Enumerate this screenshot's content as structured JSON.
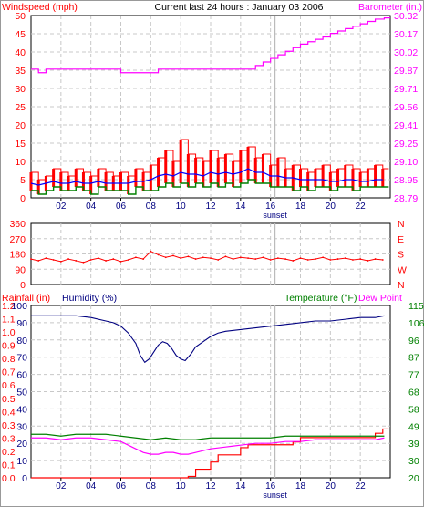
{
  "colors": {
    "windspeed": "#ff0000",
    "gust": "#ff0000",
    "wind_avg": "#0000ff",
    "wind_low": "#008000",
    "barometer": "#ff00ff",
    "direction": "#ff0000",
    "rainfall": "#ff0000",
    "humidity": "#000080",
    "temperature": "#008000",
    "dewpoint": "#ff00ff",
    "grid": "#c8c8c8",
    "frame": "#000000"
  },
  "header": {
    "title": "Current last 24 hours : January 03 2006",
    "left_label": "Windspeed (mph)",
    "right_label": "Barometer (in.)"
  },
  "middle": {
    "direction_labels": [
      "N",
      "W",
      "S",
      "E",
      "N"
    ]
  },
  "bottom": {
    "rain_label": "Rainfall (in)",
    "humidity_label": "Humidity (%)",
    "temp_label": "Temperature (°F)",
    "dew_label": "Dew Point"
  },
  "chart_data": [
    {
      "type": "line",
      "title": "Current last 24 hours : January 03 2006",
      "x_ticks": [
        "02",
        "04",
        "06",
        "08",
        "10",
        "12",
        "14",
        "16",
        "18",
        "20",
        "22"
      ],
      "x_annotation": "sunset",
      "ylabel_left": "Windspeed (mph)",
      "ylabel_right": "Barometer (in.)",
      "ylim_left": [
        0,
        50
      ],
      "yticks_left": [
        "0",
        "5",
        "10",
        "15",
        "20",
        "25",
        "30",
        "35",
        "40",
        "45",
        "50"
      ],
      "ylim_right": [
        28.79,
        30.32
      ],
      "yticks_right": [
        "28.79",
        "28.95",
        "29.10",
        "29.25",
        "29.41",
        "29.56",
        "29.71",
        "29.87",
        "30.02",
        "30.17",
        "30.32"
      ],
      "grid": true,
      "series": [
        {
          "x": [
            0,
            0.5,
            1,
            1.5,
            2,
            2.5,
            3,
            3.5,
            4,
            4.5,
            5,
            5.5,
            6,
            6.5,
            7,
            7.5,
            8,
            8.5,
            9,
            9.5,
            10,
            10.5,
            11,
            11.5,
            12,
            12.5,
            13,
            13.5,
            14,
            14.5,
            15,
            15.5,
            16,
            16.5,
            17,
            17.5,
            18,
            18.5,
            19,
            19.5,
            20,
            20.5,
            21,
            21.5,
            22,
            22.5,
            23,
            23.5
          ],
          "values": [
            7,
            5,
            6,
            8,
            7,
            6,
            8,
            7,
            6,
            8,
            7,
            6,
            7,
            6,
            8,
            7,
            9,
            11,
            13,
            10,
            16,
            12,
            11,
            10,
            13,
            11,
            12,
            10,
            13,
            14,
            11,
            12,
            9,
            11,
            8,
            9,
            8,
            7,
            8,
            9,
            7,
            8,
            9,
            8,
            7,
            8,
            9,
            8
          ]
        },
        {
          "x": [
            0,
            0.5,
            1,
            1.5,
            2,
            2.5,
            3,
            3.5,
            4,
            4.5,
            5,
            5.5,
            6,
            6.5,
            7,
            7.5,
            8,
            8.5,
            9,
            9.5,
            10,
            10.5,
            11,
            11.5,
            12,
            12.5,
            13,
            13.5,
            14,
            14.5,
            15,
            15.5,
            16,
            16.5,
            17,
            17.5,
            18,
            18.5,
            19,
            19.5,
            20,
            20.5,
            21,
            21.5,
            22,
            22.5,
            23,
            23.5
          ],
          "values": [
            4,
            3.5,
            4,
            4.5,
            4,
            4,
            4.5,
            4,
            4,
            4.5,
            4,
            4,
            4,
            4,
            4.5,
            4.5,
            5,
            6,
            6.5,
            6,
            7,
            6.5,
            6.5,
            6,
            7,
            6.5,
            7,
            6.5,
            7,
            8,
            7,
            7,
            6,
            6,
            5.5,
            5.5,
            5,
            5,
            5,
            5,
            4.5,
            4.5,
            5,
            5,
            4.5,
            4.5,
            5,
            5
          ]
        },
        {
          "x": [
            0,
            0.5,
            1,
            1.5,
            2,
            2.5,
            3,
            3.5,
            4,
            4.5,
            5,
            5.5,
            6,
            6.5,
            7,
            7.5,
            8,
            8.5,
            9,
            9.5,
            10,
            10.5,
            11,
            11.5,
            12,
            12.5,
            13,
            13.5,
            14,
            14.5,
            15,
            15.5,
            16,
            16.5,
            17,
            17.5,
            18,
            18.5,
            19,
            19.5,
            20,
            20.5,
            21,
            21.5,
            22,
            22.5,
            23,
            23.5
          ],
          "values": [
            2,
            1,
            2,
            3,
            2,
            2,
            3,
            2,
            1,
            3,
            2,
            2,
            2,
            1,
            3,
            2,
            2,
            3,
            4,
            3,
            4,
            3,
            4,
            3,
            4,
            3,
            4,
            3,
            4,
            5,
            4,
            4,
            3,
            3,
            3,
            2,
            3,
            2,
            3,
            3,
            2,
            3,
            3,
            2,
            3,
            3,
            3,
            3
          ]
        },
        {
          "x": [
            0,
            0.5,
            1,
            2,
            3,
            4,
            5,
            6,
            6.5,
            7,
            8,
            8.5,
            9,
            10,
            11,
            12,
            13,
            14,
            14.5,
            15,
            15.5,
            16,
            16.5,
            17,
            17.5,
            18,
            18.5,
            19,
            19.5,
            20,
            20.5,
            21,
            21.5,
            22,
            22.5,
            23,
            23.6
          ],
          "values": [
            29.87,
            29.84,
            29.87,
            29.87,
            29.87,
            29.87,
            29.87,
            29.84,
            29.84,
            29.84,
            29.84,
            29.87,
            29.87,
            29.87,
            29.87,
            29.87,
            29.87,
            29.87,
            29.87,
            29.9,
            29.93,
            29.96,
            29.99,
            30.02,
            30.05,
            30.08,
            30.1,
            30.12,
            30.14,
            30.17,
            30.19,
            30.21,
            30.23,
            30.25,
            30.27,
            30.29,
            30.3
          ]
        }
      ]
    },
    {
      "type": "line",
      "ylim_left": [
        0,
        360
      ],
      "yticks_left": [
        "0",
        "90",
        "180",
        "270",
        "360"
      ],
      "right_labels": [
        "N",
        "W",
        "S",
        "E",
        "N"
      ],
      "grid": true,
      "series": [
        {
          "x": [
            0,
            0.5,
            1,
            1.5,
            2,
            2.5,
            3,
            3.5,
            4,
            4.5,
            5,
            5.5,
            6,
            6.5,
            7,
            7.5,
            8,
            8.5,
            9,
            9.5,
            10,
            10.5,
            11,
            11.5,
            12,
            12.5,
            13,
            13.5,
            14,
            14.5,
            15,
            15.5,
            16,
            16.5,
            17,
            17.5,
            18,
            18.5,
            19,
            19.5,
            20,
            20.5,
            21,
            21.5,
            22,
            22.5,
            23,
            23.5
          ],
          "values": [
            150,
            140,
            155,
            145,
            135,
            150,
            140,
            130,
            145,
            155,
            140,
            150,
            135,
            145,
            160,
            150,
            195,
            175,
            160,
            170,
            155,
            165,
            150,
            160,
            155,
            145,
            165,
            150,
            160,
            155,
            150,
            160,
            145,
            155,
            150,
            140,
            155,
            145,
            150,
            160,
            145,
            150,
            155,
            145,
            150,
            140,
            150,
            145
          ]
        }
      ]
    },
    {
      "type": "line",
      "x_ticks": [
        "02",
        "04",
        "06",
        "08",
        "10",
        "12",
        "14",
        "16",
        "18",
        "20",
        "22"
      ],
      "x_annotation": "sunset",
      "ylabel_left": "Rainfall (in)",
      "ylabel_left_2": "Humidity (%)",
      "ylabel_right": "Temperature (°F)",
      "ylabel_right_2": "Dew Point",
      "ylim_humidity": [
        0,
        100
      ],
      "yticks_humidity": [
        "0",
        "10",
        "20",
        "30",
        "40",
        "50",
        "60",
        "70",
        "80",
        "90",
        "100"
      ],
      "ylim_rain": [
        0,
        1.2
      ],
      "yticks_rain": [
        "0.0",
        "0.1",
        "0.2",
        "0.3",
        "0.3",
        "0.4",
        "0.5",
        "0.6",
        "0.7",
        "0.8",
        "0.9",
        "1.0",
        "1.1",
        "1.2"
      ],
      "ylim_temp": [
        20,
        115
      ],
      "yticks_temp": [
        "20",
        "30",
        "39",
        "49",
        "58",
        "68",
        "77",
        "87",
        "96",
        "106",
        "115"
      ],
      "grid": true,
      "series": [
        {
          "x": [
            0,
            1,
            2,
            3,
            4,
            5,
            5.5,
            6,
            6.5,
            7,
            7.3,
            7.6,
            7.9,
            8.2,
            8.5,
            8.8,
            9.1,
            9.4,
            9.7,
            10,
            10.3,
            10.7,
            11,
            11.5,
            12,
            12.5,
            13,
            14,
            15,
            16,
            17,
            18,
            19,
            20,
            21,
            22,
            23,
            23.6
          ],
          "values": [
            94,
            94,
            94,
            94,
            93,
            91,
            90,
            88,
            84,
            78,
            71,
            67,
            69,
            73,
            77,
            79,
            78,
            75,
            71,
            69,
            68,
            72,
            76,
            79,
            82,
            84,
            85,
            86,
            87,
            88,
            89,
            90,
            91,
            91,
            92,
            93,
            93,
            94
          ]
        },
        {
          "x": [
            0,
            0.5,
            1,
            7.5,
            8,
            10.5,
            11,
            12,
            12.5,
            14,
            14.5,
            17.5,
            18,
            23,
            23.5
          ],
          "values": [
            0,
            0,
            0,
            0,
            0,
            0.01,
            0.06,
            0.11,
            0.16,
            0.21,
            0.23,
            0.25,
            0.28,
            0.31,
            0.34
          ]
        },
        {
          "x": [
            0,
            1,
            2,
            3,
            4,
            5,
            6,
            7,
            8,
            9,
            10,
            11,
            12,
            13,
            14,
            15,
            16,
            17,
            18,
            19,
            20,
            21,
            22,
            23,
            23.6
          ],
          "values": [
            44,
            44,
            43,
            44,
            44,
            44,
            43,
            42,
            41,
            42,
            41,
            41,
            42,
            42,
            42,
            42,
            42,
            43,
            43,
            43,
            43,
            43,
            43,
            43,
            43
          ]
        },
        {
          "x": [
            0,
            1,
            2,
            3,
            4,
            5,
            6,
            6.5,
            7,
            7.5,
            8,
            8.5,
            9,
            9.5,
            10,
            10.5,
            11,
            12,
            13,
            14,
            15,
            16,
            17,
            18,
            19,
            20,
            21,
            22,
            23,
            23.6
          ],
          "values": [
            42,
            42,
            41,
            42,
            42,
            41,
            40,
            38,
            36,
            34,
            33,
            33,
            34,
            34,
            33,
            33,
            34,
            36,
            37,
            38,
            39,
            39,
            40,
            40,
            41,
            41,
            41,
            41,
            41,
            42
          ]
        }
      ]
    }
  ]
}
